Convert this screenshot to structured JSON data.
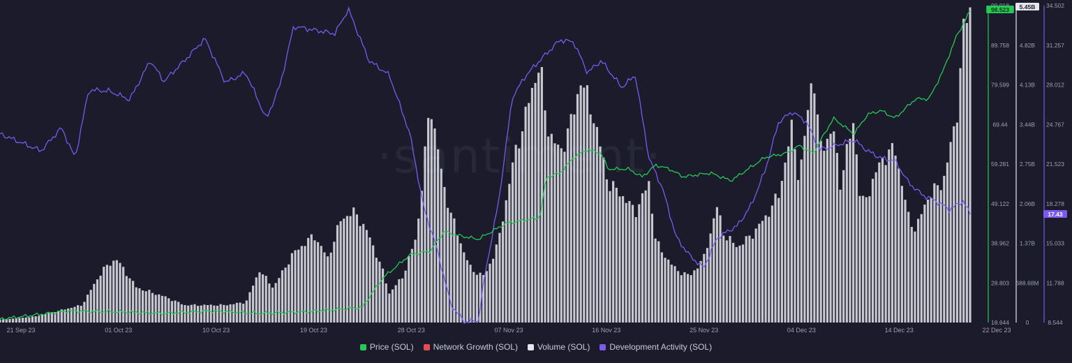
{
  "chart_data": {
    "type": "line",
    "x_ticks": [
      "21 Sep 23",
      "01 Oct 23",
      "10 Oct 23",
      "19 Oct 23",
      "28 Oct 23",
      "07 Nov 23",
      "16 Nov 23",
      "25 Nov 23",
      "04 Dec 23",
      "14 Dec 23",
      "22 Dec 23"
    ],
    "axes": {
      "price": {
        "ticks": [
          "99.918",
          "89.758",
          "79.599",
          "69.44",
          "59.281",
          "49.122",
          "38.962",
          "28.803",
          "18.644"
        ],
        "current": "98.523",
        "color": "#26c953"
      },
      "volume": {
        "ticks": [
          "5.45B",
          "4.82B",
          "4.13B",
          "3.44B",
          "2.75B",
          "2.06B",
          "1.37B",
          "688.68M",
          "0"
        ],
        "current": "5.45B",
        "color": "#e6e6ee"
      },
      "dev": {
        "ticks": [
          "34.502",
          "31.257",
          "28.012",
          "24.767",
          "21.523",
          "18.278",
          "15.033",
          "11.788",
          "8.544"
        ],
        "current": "17.43",
        "color": "#7a5af0"
      }
    },
    "series": [
      {
        "name": "Price (SOL)",
        "color": "#26c953",
        "points": [
          [
            0,
            19.5
          ],
          [
            10,
            21.6
          ],
          [
            17,
            21.4
          ],
          [
            24,
            21.0
          ],
          [
            31,
            21.6
          ],
          [
            38,
            21.0
          ],
          [
            45,
            21.4
          ],
          [
            53,
            22.5
          ],
          [
            56,
            30
          ],
          [
            60,
            36
          ],
          [
            63,
            37
          ],
          [
            65,
            42
          ],
          [
            67,
            41
          ],
          [
            70,
            40
          ],
          [
            74,
            44
          ],
          [
            77,
            45
          ],
          [
            79,
            45.5
          ],
          [
            80,
            56
          ],
          [
            82,
            57
          ],
          [
            84,
            61
          ],
          [
            86,
            63
          ],
          [
            88,
            62
          ],
          [
            89,
            58
          ],
          [
            92,
            58
          ],
          [
            94,
            56
          ],
          [
            96,
            59
          ],
          [
            98,
            58
          ],
          [
            100,
            56
          ],
          [
            104,
            57
          ],
          [
            107,
            55
          ],
          [
            112,
            61
          ],
          [
            115,
            62
          ],
          [
            117,
            64
          ],
          [
            119,
            62
          ],
          [
            122,
            71
          ],
          [
            125,
            67
          ],
          [
            127,
            72
          ],
          [
            129,
            73
          ],
          [
            131,
            71
          ],
          [
            134,
            76
          ],
          [
            136,
            76
          ],
          [
            138,
            83
          ],
          [
            140,
            92
          ],
          [
            142,
            98.5
          ]
        ]
      },
      {
        "name": "Volume (SOL)",
        "color": "#e6e6ee",
        "points": [
          [
            0,
            0.05
          ],
          [
            5,
            0.1
          ],
          [
            12,
            0.3
          ],
          [
            15,
            0.9
          ],
          [
            17,
            1.1
          ],
          [
            20,
            0.6
          ],
          [
            24,
            0.45
          ],
          [
            27,
            0.3
          ],
          [
            30,
            0.3
          ],
          [
            33,
            0.3
          ],
          [
            36,
            0.35
          ],
          [
            38,
            0.9
          ],
          [
            40,
            0.6
          ],
          [
            43,
            1.2
          ],
          [
            46,
            1.5
          ],
          [
            48,
            1.1
          ],
          [
            50,
            1.8
          ],
          [
            52,
            1.9
          ],
          [
            54,
            1.5
          ],
          [
            56,
            0.9
          ],
          [
            57,
            0.5
          ],
          [
            59,
            0.8
          ],
          [
            61,
            1.5
          ],
          [
            63,
            3.8
          ],
          [
            65,
            2.3
          ],
          [
            67,
            1.5
          ],
          [
            69,
            0.9
          ],
          [
            71,
            0.8
          ],
          [
            73,
            1.4
          ],
          [
            75,
            2.7
          ],
          [
            77,
            3.6
          ],
          [
            79,
            4.5
          ],
          [
            80,
            3.4
          ],
          [
            82,
            2.9
          ],
          [
            84,
            3.6
          ],
          [
            85,
            4.2
          ],
          [
            87,
            3.5
          ],
          [
            89,
            2.4
          ],
          [
            91,
            2.2
          ],
          [
            93,
            1.9
          ],
          [
            95,
            2.4
          ],
          [
            96,
            1.4
          ],
          [
            97,
            1.2
          ],
          [
            99,
            0.9
          ],
          [
            101,
            0.8
          ],
          [
            103,
            1.1
          ],
          [
            105,
            2.0
          ],
          [
            106,
            1.5
          ],
          [
            108,
            1.3
          ],
          [
            110,
            1.5
          ],
          [
            112,
            1.8
          ],
          [
            114,
            2.2
          ],
          [
            116,
            3.4
          ],
          [
            117,
            2.4
          ],
          [
            119,
            4.4
          ],
          [
            120,
            3.0
          ],
          [
            122,
            3.3
          ],
          [
            123,
            2.4
          ],
          [
            125,
            3.5
          ],
          [
            126,
            2.0
          ],
          [
            127,
            2.2
          ],
          [
            129,
            2.8
          ],
          [
            131,
            3.0
          ],
          [
            133,
            1.8
          ],
          [
            134,
            1.6
          ],
          [
            136,
            2.2
          ],
          [
            138,
            2.4
          ],
          [
            140,
            3.5
          ],
          [
            141,
            5.0
          ],
          [
            142,
            5.4
          ]
        ]
      },
      {
        "name": "Development Activity (SOL)",
        "color": "#7a5af0",
        "points": [
          [
            0,
            24.0
          ],
          [
            3,
            23.3
          ],
          [
            6,
            22.6
          ],
          [
            9,
            24.5
          ],
          [
            11,
            22.0
          ],
          [
            13,
            27.6
          ],
          [
            16,
            27.5
          ],
          [
            19,
            26.8
          ],
          [
            22,
            30.0
          ],
          [
            24,
            28.3
          ],
          [
            27,
            30.0
          ],
          [
            30,
            31.8
          ],
          [
            33,
            28.2
          ],
          [
            36,
            29.0
          ],
          [
            39,
            25.2
          ],
          [
            41,
            28.0
          ],
          [
            43,
            32.8
          ],
          [
            46,
            32.5
          ],
          [
            49,
            32.2
          ],
          [
            51,
            34.2
          ],
          [
            54,
            30.0
          ],
          [
            57,
            28.8
          ],
          [
            60,
            24.0
          ],
          [
            62,
            18.0
          ],
          [
            64,
            14.5
          ],
          [
            66,
            10.0
          ],
          [
            68,
            8.6
          ],
          [
            70,
            8.7
          ],
          [
            71,
            12.5
          ],
          [
            73,
            18.5
          ],
          [
            75,
            27.0
          ],
          [
            77,
            28.8
          ],
          [
            79,
            30.0
          ],
          [
            82,
            31.7
          ],
          [
            84,
            31.5
          ],
          [
            86,
            29.0
          ],
          [
            88,
            30.0
          ],
          [
            91,
            27.8
          ],
          [
            93,
            28.8
          ],
          [
            95,
            22.0
          ],
          [
            97,
            19.5
          ],
          [
            99,
            15.5
          ],
          [
            101,
            14.0
          ],
          [
            103,
            13.0
          ],
          [
            105,
            15.5
          ],
          [
            108,
            16.5
          ],
          [
            110,
            18.2
          ],
          [
            112,
            21.0
          ],
          [
            114,
            25.0
          ],
          [
            116,
            25.8
          ],
          [
            118,
            25.0
          ],
          [
            120,
            22.7
          ],
          [
            122,
            23.0
          ],
          [
            125,
            23.5
          ],
          [
            127,
            22.6
          ],
          [
            129,
            22.0
          ],
          [
            131,
            21.8
          ],
          [
            133,
            20.0
          ],
          [
            135,
            19.0
          ],
          [
            137,
            18.5
          ],
          [
            139,
            17.8
          ],
          [
            141,
            18.5
          ],
          [
            142,
            17.4
          ]
        ]
      }
    ],
    "legend": [
      {
        "name": "Price (SOL)",
        "color": "#26c953"
      },
      {
        "name": "Network Growth (SOL)",
        "color": "#e84b50"
      },
      {
        "name": "Volume (SOL)",
        "color": "#e6e6ee"
      },
      {
        "name": "Development Activity (SOL)",
        "color": "#7a5af0"
      }
    ],
    "legend_position": "bottom",
    "grid": false,
    "watermark": "·santiment·"
  }
}
